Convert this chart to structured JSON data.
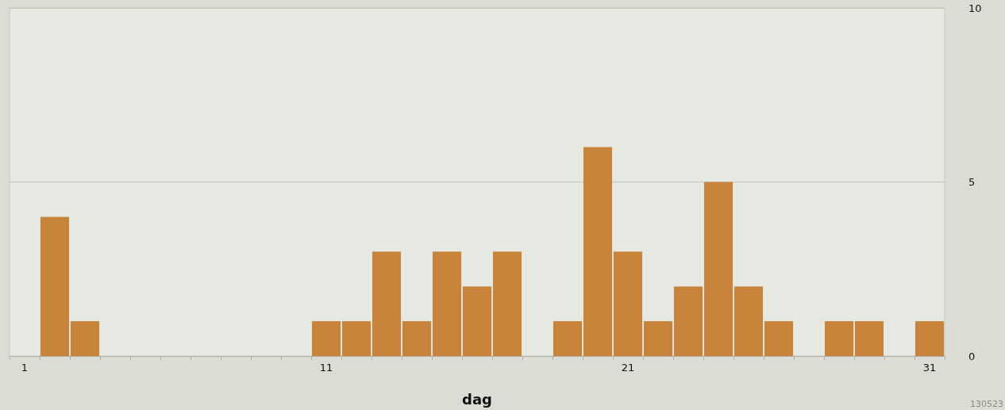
{
  "chart_data": {
    "type": "bar",
    "xlabel": "dag",
    "categories": [
      "1",
      null,
      null,
      null,
      null,
      null,
      null,
      null,
      null,
      null,
      "11",
      null,
      null,
      null,
      null,
      null,
      null,
      null,
      null,
      null,
      "21",
      null,
      null,
      null,
      null,
      null,
      null,
      null,
      null,
      null,
      "31"
    ],
    "values": [
      0,
      4,
      1,
      0,
      0,
      0,
      0,
      0,
      0,
      0,
      1,
      1,
      3,
      1,
      3,
      2,
      3,
      0,
      1,
      6,
      3,
      1,
      2,
      5,
      2,
      1,
      0,
      1,
      1,
      0,
      1
    ],
    "color": "#c8843a",
    "ylim": [
      0,
      10
    ],
    "yticks": [
      0,
      5,
      10
    ],
    "grid": "y",
    "annotations": [
      "130523"
    ]
  }
}
